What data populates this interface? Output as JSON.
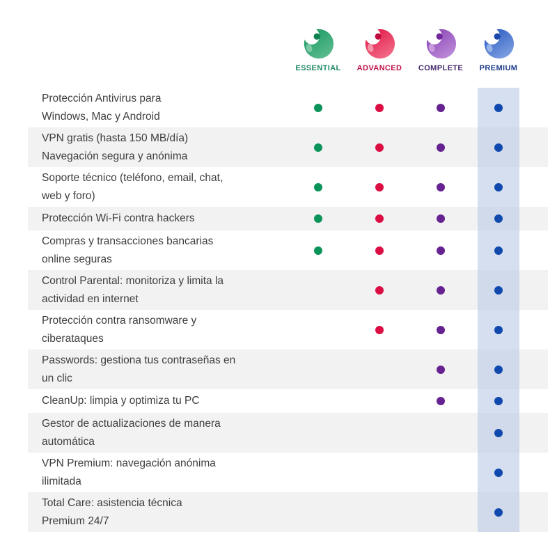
{
  "header": {
    "brand_icon": "panda-circle-logo",
    "tiers": [
      {
        "name": "ESSENTIAL",
        "label_color": "#1F8A62",
        "dot_color": "#0B9459",
        "logo": {
          "dark": "#1D9A64",
          "light": "#5FBD92",
          "ear": "#0E7F4E",
          "petal": "#8ED1B2"
        }
      },
      {
        "name": "ADVANCED",
        "label_color": "#C11047",
        "dot_color": "#DC0D42",
        "logo": {
          "dark": "#E01748",
          "light": "#F4728C",
          "ear": "#C00D3D",
          "petal": "#F7A8B8"
        }
      },
      {
        "name": "COMPLETE",
        "label_color": "#44286C",
        "dot_color": "#652290",
        "logo": {
          "dark": "#8A46B4",
          "light": "#C08FDC",
          "ear": "#70289C",
          "petal": "#D2A9E6"
        }
      },
      {
        "name": "PREMIUM",
        "label_color": "#1B3C8C",
        "dot_color": "#1049AE",
        "logo": {
          "dark": "#2C5AC0",
          "light": "#84A6E4",
          "ear": "#1C48AC",
          "petal": "#A9C0EC"
        }
      }
    ]
  },
  "table": {
    "alt_row_color": "#F2F2F3",
    "premium_band_color": "rgba(185,202,230,0.6)",
    "text_color": "#3E3E3E"
  },
  "chart_data": {
    "type": "table",
    "title": "",
    "columns": [
      "ESSENTIAL",
      "ADVANCED",
      "COMPLETE",
      "PREMIUM"
    ],
    "rows": [
      {
        "feature": "Protección Antivirus para Windows, Mac y Android",
        "lines": [
          "Protección Antivirus para",
          "Windows, Mac y Android"
        ],
        "included": [
          true,
          true,
          true,
          true
        ]
      },
      {
        "feature": "VPN gratis (hasta 150 MB/día) Navegación segura y anónima",
        "lines": [
          "VPN gratis (hasta 150 MB/día)",
          "Navegación segura y anónima"
        ],
        "included": [
          true,
          true,
          true,
          true
        ]
      },
      {
        "feature": "Soporte técnico (teléfono, email, chat, web y foro)",
        "lines": [
          "Soporte técnico (teléfono, email, chat,",
          "web y foro)"
        ],
        "included": [
          true,
          true,
          true,
          true
        ]
      },
      {
        "feature": "Protección Wi-Fi contra hackers",
        "lines": [
          "Protección Wi-Fi contra hackers"
        ],
        "included": [
          true,
          true,
          true,
          true
        ]
      },
      {
        "feature": "Compras y transacciones bancarias online seguras",
        "lines": [
          "Compras y transacciones bancarias",
          "online seguras"
        ],
        "included": [
          true,
          true,
          true,
          true
        ]
      },
      {
        "feature": "Control Parental: monitoriza y limita la actividad en internet",
        "lines": [
          "Control Parental: monitoriza y limita la",
          "actividad en internet"
        ],
        "included": [
          false,
          true,
          true,
          true
        ]
      },
      {
        "feature": "Protección contra ransomware y ciberataques",
        "lines": [
          "Protección contra ransomware y",
          "ciberataques"
        ],
        "included": [
          false,
          true,
          true,
          true
        ]
      },
      {
        "feature": "Passwords: gestiona tus contraseñas en un clic",
        "lines": [
          "Passwords: gestiona tus contraseñas en",
          "un clic"
        ],
        "included": [
          false,
          false,
          true,
          true
        ]
      },
      {
        "feature": "CleanUp: limpia y optimiza tu PC",
        "lines": [
          "CleanUp: limpia y optimiza tu PC"
        ],
        "included": [
          false,
          false,
          true,
          true
        ]
      },
      {
        "feature": "Gestor de actualizaciones de manera automática",
        "lines": [
          "Gestor de actualizaciones de manera",
          "automática"
        ],
        "included": [
          false,
          false,
          false,
          true
        ]
      },
      {
        "feature": "VPN Premium: navegación anónima ilimitada",
        "lines": [
          "VPN Premium: navegación anónima",
          "ilimitada"
        ],
        "included": [
          false,
          false,
          false,
          true
        ]
      },
      {
        "feature": "Total Care: asistencia técnica Premium 24/7",
        "lines": [
          "Total Care: asistencia técnica",
          "Premium 24/7"
        ],
        "included": [
          false,
          false,
          false,
          true
        ]
      }
    ]
  }
}
